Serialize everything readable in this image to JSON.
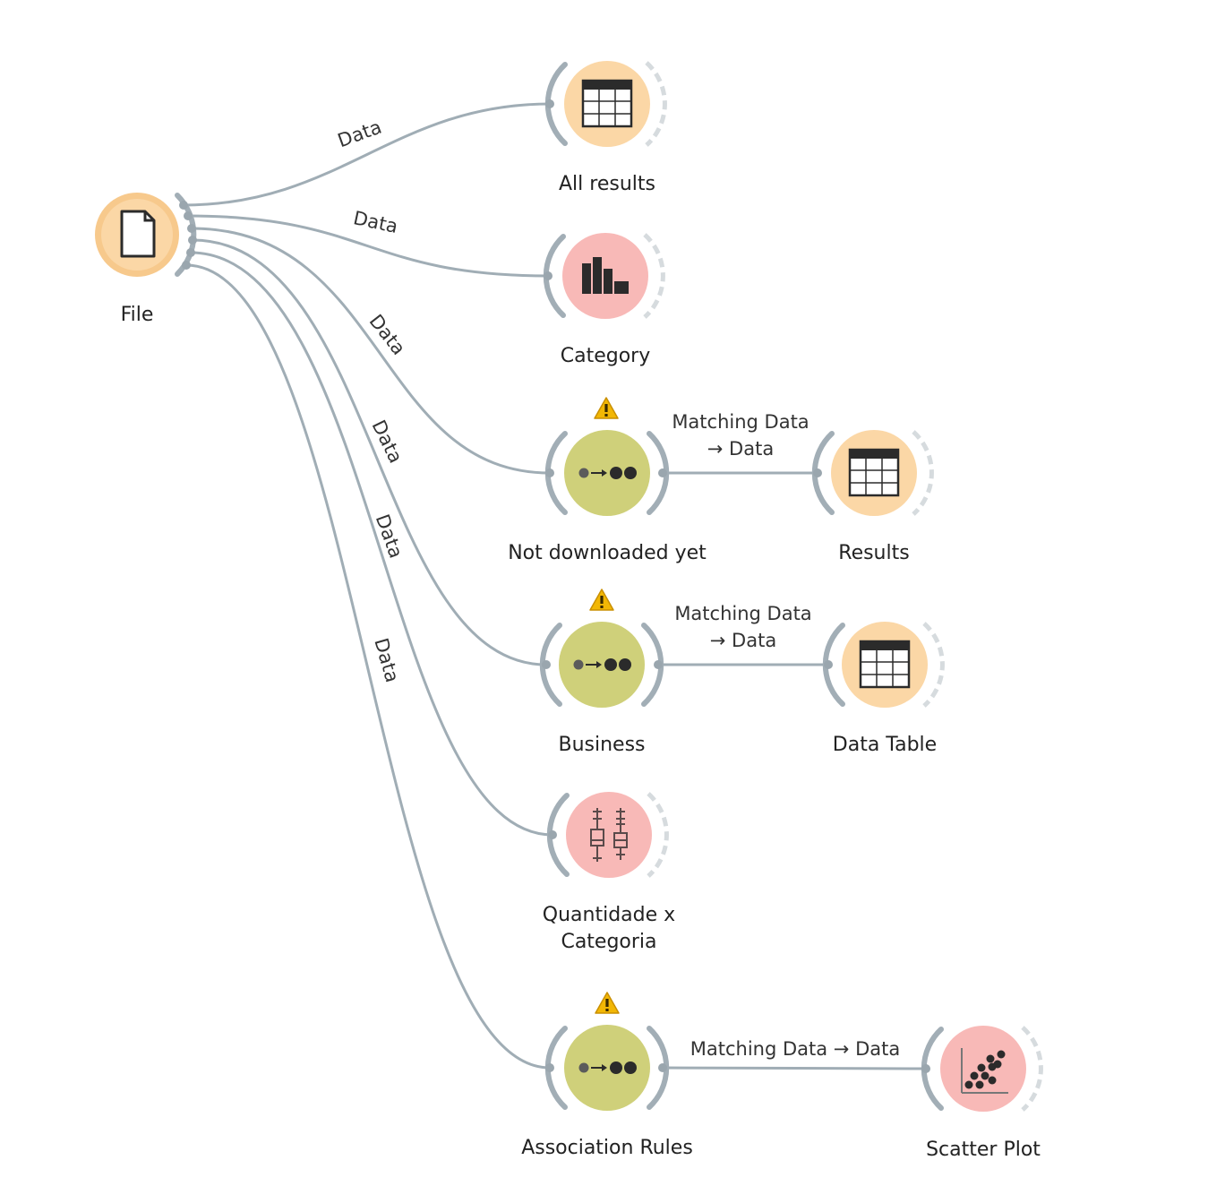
{
  "colors": {
    "data_widget": "#fbd7a6",
    "data_widget_ring": "#f7c98c",
    "visual_widget": "#f8b9b7",
    "model_widget": "#cfd07a",
    "warning": "#f2b705",
    "link": "#a0adb5"
  },
  "nodes": {
    "file": {
      "label": "File",
      "icon": "file-icon"
    },
    "all_results": {
      "label": "All results",
      "icon": "data-table-icon"
    },
    "category": {
      "label": "Category",
      "icon": "bar-chart-icon"
    },
    "not_downloaded": {
      "label": "Not downloaded yet",
      "icon": "select-rows-icon",
      "warning": "!"
    },
    "results": {
      "label": "Results",
      "icon": "data-table-icon"
    },
    "business": {
      "label": "Business",
      "icon": "select-rows-icon",
      "warning": "!"
    },
    "data_table": {
      "label": "Data Table",
      "icon": "data-table-icon"
    },
    "quantidade": {
      "label_line1": "Quantidade x",
      "label_line2": "Categoria",
      "icon": "box-plot-icon"
    },
    "association": {
      "label": "Association Rules",
      "icon": "select-rows-icon",
      "warning": "!"
    },
    "scatter": {
      "label": "Scatter Plot",
      "icon": "scatter-plot-icon"
    }
  },
  "links": {
    "file_all_results": "Data",
    "file_category": "Data",
    "file_not_downloaded": "Data",
    "file_business": "Data",
    "file_quantidade": "Data",
    "file_association": "Data",
    "not_downloaded_results_line1": "Matching Data",
    "not_downloaded_results_line2": "→ Data",
    "business_data_table_line1": "Matching Data",
    "business_data_table_line2": "→ Data",
    "association_scatter": "Matching Data → Data"
  }
}
